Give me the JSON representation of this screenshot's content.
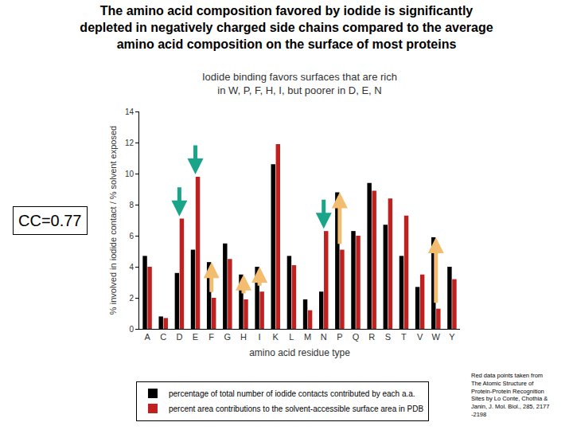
{
  "chart_data": {
    "type": "bar",
    "title": [
      "The amino acid composition favored by iodide is significantly",
      "depleted in negatively charged side chains compared to the average",
      "amino acid composition on the surface of most proteins"
    ],
    "subtitle": [
      "Iodide binding favors surfaces that are rich",
      "in W, P, F, H, I, but poorer in D, E, N"
    ],
    "x_label": "amino acid residue type",
    "y_label": "% involved in iodide contact / % solvent exposed",
    "annotations": [
      "CC=0.77"
    ],
    "note": [
      "Red data points taken from",
      "The Atomic Structure of",
      "Protein-Protein Recognition",
      "Sites by Lo Conte, Chothia &",
      "Janin, J. Mol. Biol., 285, 2177",
      "-2198"
    ],
    "categories": [
      "A",
      "C",
      "D",
      "E",
      "F",
      "G",
      "H",
      "I",
      "K",
      "L",
      "M",
      "N",
      "P",
      "Q",
      "R",
      "S",
      "T",
      "V",
      "W",
      "Y"
    ],
    "series": [
      {
        "name": "percentage of total number of iodide contacts contributed by each a.a.",
        "color": "#000000",
        "values": [
          4.7,
          0.8,
          3.6,
          5.1,
          4.3,
          5.5,
          3.5,
          4.0,
          10.6,
          4.7,
          1.9,
          2.4,
          8.8,
          6.3,
          9.4,
          6.7,
          4.7,
          2.7,
          5.9,
          4.0
        ]
      },
      {
        "name": "percent area contributions to the solvent-accessible surface area in PDB",
        "color": "#c0211f",
        "values": [
          4.0,
          0.7,
          7.1,
          9.8,
          2.0,
          4.5,
          1.9,
          2.4,
          11.9,
          4.1,
          1.2,
          6.3,
          5.1,
          6.0,
          8.9,
          8.4,
          7.3,
          3.5,
          1.3,
          3.2
        ]
      }
    ],
    "ylim": [
      0,
      14
    ],
    "yticks": [
      0,
      2,
      4,
      6,
      8,
      10,
      12,
      14
    ],
    "grid": false,
    "legend": "bottom"
  }
}
